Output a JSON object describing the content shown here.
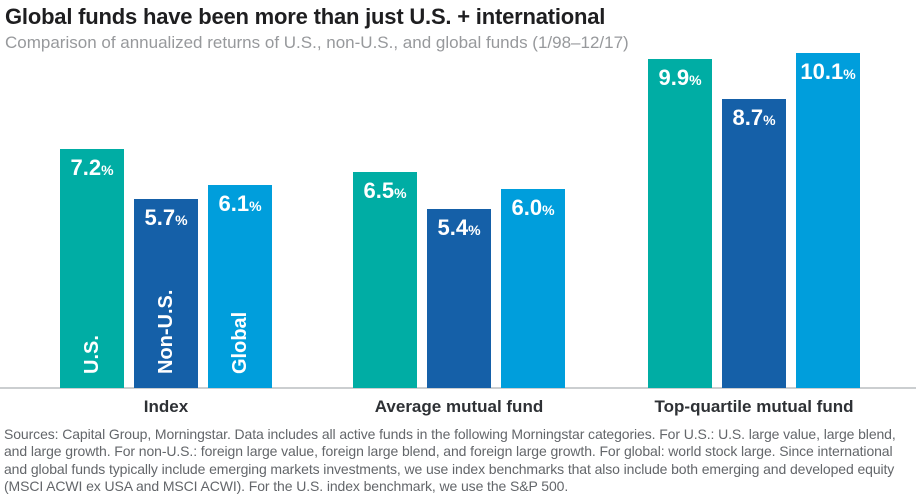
{
  "header": {
    "title": "Global funds have been more than just U.S. + international",
    "subtitle": "Comparison of annualized returns of U.S., non-U.S., and global funds (1/98–12/17)"
  },
  "chart_data": {
    "type": "bar",
    "title": "Comparison of annualized returns of U.S., non-U.S., and global funds (1/98–12/17)",
    "categories": [
      "Index",
      "Average mutual fund",
      "Top-quartile mutual fund"
    ],
    "series": [
      {
        "name": "U.S.",
        "color": "#00ada4",
        "values": [
          7.2,
          6.5,
          9.9
        ]
      },
      {
        "name": "Non-U.S.",
        "color": "#1560a8",
        "values": [
          5.7,
          5.4,
          8.7
        ]
      },
      {
        "name": "Global",
        "color": "#009edc",
        "values": [
          6.1,
          6.0,
          10.1
        ]
      }
    ],
    "value_suffix": "%",
    "value_labels": "inside-top-white",
    "legend_position": "series-names-inside-first-group-bars",
    "xlabel": "",
    "ylabel": "",
    "ylim": [
      0,
      10.5
    ],
    "grid": false,
    "axis_line_color": "#cbced0"
  },
  "footnote": {
    "text": "Sources: Capital Group, Morningstar. Data includes all active funds in the following Morningstar categories. For U.S.: U.S. large value, large blend, and large growth. For non-U.S.: foreign large value, foreign large blend, and foreign large growth. For global: world stock large. Since international and global funds typically include emerging markets investments, we use index benchmarks that also include both emerging and developed equity (MSCI ACWI ex USA and MSCI ACWI). For the U.S. index benchmark, we use the S&P 500."
  }
}
